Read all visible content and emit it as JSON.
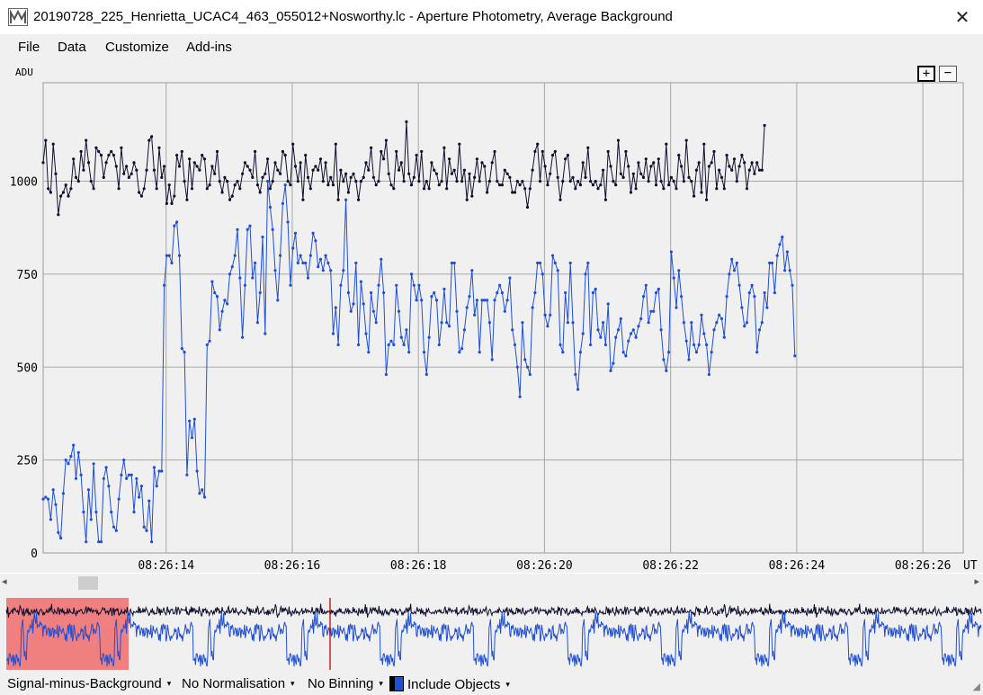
{
  "window": {
    "title": "20190728_225_Henrietta_UCAC4_463_055012+Nosworthy.lc - Aperture Photometry, Average Background",
    "close_glyph": "✕",
    "icon": "app-chart-icon"
  },
  "menu": {
    "items": [
      "File",
      "Data",
      "Customize",
      "Add-ins"
    ]
  },
  "plot": {
    "y_unit": "ADU",
    "x_unit": "UT",
    "zoom_in_label": "+",
    "zoom_out_label": "−"
  },
  "statusbar": {
    "signal_mode": "Signal-minus-Background",
    "normalisation": "No Normalisation",
    "binning": "No Binning",
    "include_objects": "Include Objects",
    "caret": "▾"
  },
  "colors": {
    "comparison_series": "#0f0f2e",
    "target_series": "#1f4fd8",
    "plot_background": "#f0f0f0",
    "grid": "#a8a8a8",
    "overview_selection": "#f08080",
    "overview_cursor": "#cc0000"
  },
  "chart_data": {
    "type": "line",
    "ylabel": "ADU",
    "xlabel": "UT",
    "ylim": [
      0,
      1265
    ],
    "y_ticks": [
      0,
      250,
      500,
      750,
      1000
    ],
    "x_tick_labels": [
      "08:26:14",
      "08:26:16",
      "08:26:18",
      "08:26:20",
      "08:26:22",
      "08:26:24",
      "08:26:26"
    ],
    "x_tick_seconds": [
      14,
      16,
      18,
      20,
      22,
      24,
      26
    ],
    "xlim_seconds": [
      12.05,
      26.64
    ],
    "grid": true,
    "series": [
      {
        "color": "#0f0f2e",
        "x_start": 12.05,
        "x_step": 0.04,
        "values": [
          1050,
          1110,
          980,
          970,
          1100,
          1020,
          910,
          960,
          970,
          990,
          960,
          980,
          1060,
          1010,
          1000,
          1080,
          1030,
          1110,
          1050,
          1000,
          980,
          1090,
          1080,
          1070,
          1010,
          1050,
          1070,
          1080,
          1070,
          1040,
          980,
          1090,
          1020,
          1040,
          1010,
          1020,
          1050,
          1030,
          970,
          960,
          980,
          1030,
          1110,
          1120,
          1030,
          980,
          1090,
          1010,
          1040,
          940,
          990,
          940,
          960,
          1070,
          1040,
          1080,
          1000,
          950,
          1060,
          980,
          1050,
          1040,
          1030,
          1070,
          1060,
          980,
          990,
          1040,
          1020,
          1080,
          1000,
          970,
          1010,
          1000,
          950,
          960,
          990,
          1000,
          980,
          1020,
          1050,
          1040,
          1030,
          1010,
          1080,
          990,
          970,
          1010,
          1020,
          1060,
          980,
          1000,
          1050,
          1030,
          1020,
          1080,
          1070,
          1000,
          990,
          1100,
          1040,
          1000,
          1050,
          950,
          1070,
          1010,
          980,
          1030,
          1040,
          1030,
          1060,
          1000,
          1050,
          990,
          1010,
          990,
          1100,
          950,
          1030,
          1000,
          1020,
          970,
          1010,
          1020,
          1000,
          950,
          1000,
          1010,
          1050,
          1030,
          1090,
          1010,
          990,
          1000,
          1080,
          1060,
          1110,
          1020,
          990,
          980,
          1080,
          1030,
          1050,
          1000,
          1160,
          1020,
          990,
          1010,
          1070,
          1000,
          1080,
          980,
          1000,
          980,
          1050,
          1030,
          1020,
          990,
          1000,
          1090,
          980,
          1060,
          1020,
          1030,
          1000,
          1100,
          1000,
          1030,
          950,
          1020,
          960,
          1010,
          1060,
          1000,
          1050,
          1040,
          970,
          1000,
          1050,
          1080,
          1000,
          990,
          990,
          1030,
          1020,
          1010,
          970,
          970,
          1000,
          990,
          1000,
          980,
          930,
          980,
          1030,
          1080,
          1100,
          1000,
          1080,
          1040,
          990,
          1020,
          1070,
          1080,
          1010,
          950,
          1000,
          1060,
          1070,
          1000,
          1010,
          980,
          1000,
          990,
          1050,
          1010,
          1090,
          1000,
          990,
          1000,
          980,
          990,
          1030,
          950,
          1080,
          1040,
          1000,
          990,
          1110,
          1020,
          1010,
          1080,
          1040,
          970,
          1020,
          980,
          1050,
          1020,
          1010,
          1060,
          1000,
          1040,
          1050,
          990,
          1060,
          1000,
          980,
          1100,
          990,
          1010,
          1000,
          980,
          1070,
          1040,
          1000,
          1110,
          1010,
          1000,
          960,
          1030,
          1050,
          970,
          1100,
          950,
          1040,
          1050,
          1080,
          980,
          1030,
          1010,
          980,
          1070,
          1040,
          1030,
          1060,
          1000,
          1040,
          1070,
          1050,
          980,
          1030,
          1050,
          1020,
          1050,
          1030,
          1030,
          1150
        ]
      },
      {
        "color": "#1f4fd8",
        "x_start": 12.05,
        "x_step": 0.04,
        "values": [
          145,
          150,
          145,
          90,
          170,
          130,
          55,
          40,
          160,
          250,
          240,
          260,
          290,
          200,
          270,
          210,
          110,
          30,
          170,
          90,
          240,
          110,
          30,
          30,
          200,
          230,
          180,
          110,
          70,
          60,
          145,
          210,
          250,
          200,
          210,
          210,
          110,
          200,
          150,
          180,
          70,
          60,
          140,
          30,
          230,
          180,
          220,
          220,
          720,
          800,
          800,
          780,
          880,
          890,
          800,
          550,
          540,
          210,
          355,
          310,
          360,
          220,
          160,
          170,
          150,
          560,
          570,
          730,
          700,
          690,
          600,
          650,
          680,
          670,
          750,
          770,
          800,
          870,
          740,
          580,
          720,
          870,
          880,
          740,
          780,
          620,
          700,
          850,
          590,
          1000,
          930,
          870,
          760,
          680,
          800,
          940,
          990,
          890,
          720,
          820,
          860,
          780,
          800,
          780,
          780,
          740,
          800,
          860,
          840,
          770,
          790,
          760,
          800,
          780,
          760,
          590,
          660,
          560,
          720,
          760,
          950,
          700,
          650,
          670,
          780,
          560,
          730,
          670,
          590,
          540,
          700,
          650,
          620,
          720,
          790,
          700,
          480,
          560,
          570,
          560,
          720,
          650,
          580,
          560,
          600,
          540,
          750,
          720,
          680,
          720,
          680,
          540,
          480,
          580,
          690,
          700,
          680,
          560,
          620,
          710,
          620,
          610,
          780,
          780,
          650,
          540,
          550,
          600,
          660,
          690,
          760,
          640,
          680,
          540,
          680,
          680,
          680,
          620,
          520,
          680,
          700,
          720,
          700,
          650,
          680,
          740,
          600,
          560,
          500,
          420,
          620,
          520,
          500,
          480,
          660,
          700,
          780,
          780,
          750,
          640,
          610,
          640,
          800,
          780,
          760,
          560,
          540,
          700,
          620,
          780,
          620,
          480,
          440,
          540,
          590,
          750,
          780,
          560,
          700,
          710,
          600,
          580,
          620,
          560,
          670,
          490,
          510,
          580,
          600,
          630,
          540,
          530,
          570,
          590,
          600,
          580,
          610,
          630,
          690,
          720,
          620,
          650,
          650,
          700,
          710,
          600,
          520,
          490,
          540,
          810,
          740,
          660,
          760,
          690,
          620,
          570,
          520,
          620,
          560,
          540,
          560,
          640,
          590,
          560,
          480,
          540,
          600,
          620,
          640,
          630,
          580,
          690,
          750,
          790,
          760,
          780,
          720,
          660,
          610,
          620,
          700,
          720,
          690,
          540,
          600,
          620,
          700,
          660,
          780,
          780,
          700,
          800,
          830,
          850,
          760,
          810,
          760,
          720,
          530
        ]
      }
    ]
  }
}
